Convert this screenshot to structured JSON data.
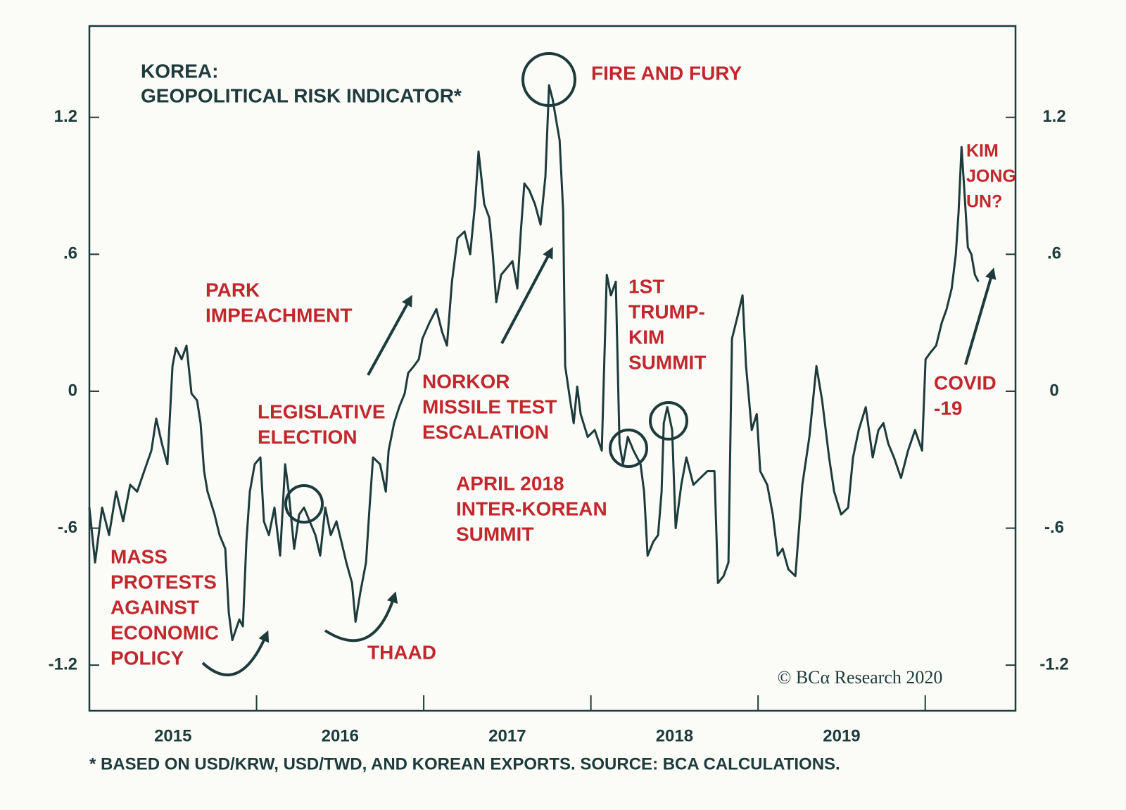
{
  "chart_data": {
    "type": "line",
    "title": [
      "KOREA:",
      "GEOPOLITICAL RISK INDICATOR*"
    ],
    "footnote": "* BASED ON USD/KRW, USD/TWD, AND KOREAN EXPORTS. SOURCE: BCA CALCULATIONS.",
    "credit": "© BCα Research 2020",
    "annotations": [
      [
        "MASS",
        "PROTESTS",
        "AGAINST",
        "ECONOMIC",
        "POLICY"
      ],
      [
        "LEGISLATIVE",
        "ELECTION"
      ],
      [
        "PARK",
        "IMPEACHMENT"
      ],
      [
        "THAAD"
      ],
      [
        "NORKOR",
        "MISSILE TEST",
        "ESCALATION"
      ],
      [
        "APRIL 2018",
        "INTER-KOREAN",
        "SUMMIT"
      ],
      [
        "FIRE AND FURY"
      ],
      [
        "1ST",
        "TRUMP-",
        "KIM",
        "SUMMIT"
      ],
      [
        "KIM",
        "JONG",
        "UN?"
      ],
      [
        "COVID",
        "-19"
      ]
    ],
    "xlim": [
      2015,
      2020.54
    ],
    "xticks": [
      {
        "value": 2015.5,
        "label": "2015"
      },
      {
        "value": 2016.5,
        "label": "2016"
      },
      {
        "value": 2017.5,
        "label": "2017"
      },
      {
        "value": 2018.5,
        "label": "2018"
      },
      {
        "value": 2019.5,
        "label": "2019"
      }
    ],
    "xminor_ticks": [
      2016,
      2017,
      2018,
      2019,
      2020
    ],
    "ylim": [
      -1.4,
      1.6
    ],
    "yticks": [
      1.2,
      {
        "value": 0.6,
        "label": ".6"
      },
      0,
      {
        "value": -0.6,
        "label": "-.6"
      },
      -1.2
    ],
    "x": [
      2015.0,
      2015.034,
      2015.076,
      2015.118,
      2015.16,
      2015.202,
      2015.244,
      2015.286,
      2015.328,
      2015.371,
      2015.4,
      2015.434,
      2015.467,
      2015.497,
      2015.518,
      2015.552,
      2015.581,
      2015.611,
      2015.644,
      2015.665,
      2015.686,
      2015.707,
      2015.749,
      2015.779,
      2015.813,
      2015.834,
      2015.855,
      2015.897,
      2015.918,
      2015.939,
      2015.96,
      2015.989,
      2016.023,
      2016.044,
      2016.074,
      2016.107,
      2016.141,
      2016.171,
      2016.192,
      2016.225,
      2016.255,
      2016.284,
      2016.318,
      2016.352,
      2016.381,
      2016.411,
      2016.444,
      2016.478,
      2016.508,
      2016.537,
      2016.571,
      2016.592,
      2016.621,
      2016.655,
      2016.676,
      2016.697,
      2016.739,
      2016.773,
      2016.79,
      2016.823,
      2016.853,
      2016.886,
      2016.907,
      2016.941,
      2016.971,
      2016.992,
      2017.034,
      2017.076,
      2017.11,
      2017.139,
      2017.169,
      2017.202,
      2017.244,
      2017.278,
      2017.307,
      2017.328,
      2017.362,
      2017.392,
      2017.413,
      2017.434,
      2017.463,
      2017.497,
      2017.531,
      2017.56,
      2017.581,
      2017.602,
      2017.632,
      2017.665,
      2017.699,
      2017.728,
      2017.75,
      2017.771,
      2017.792,
      2017.813,
      2017.834,
      2017.846,
      2017.876,
      2017.897,
      2017.918,
      2017.939,
      2017.981,
      2018.023,
      2018.065,
      2018.095,
      2018.12,
      2018.149,
      2018.171,
      2018.192,
      2018.221,
      2018.255,
      2018.297,
      2018.318,
      2018.339,
      2018.373,
      2018.402,
      2018.423,
      2018.436,
      2018.457,
      2018.486,
      2018.507,
      2018.541,
      2018.571,
      2018.613,
      2018.655,
      2018.697,
      2018.739,
      2018.76,
      2018.794,
      2018.823,
      2018.844,
      2018.878,
      2018.907,
      2018.928,
      2018.962,
      2018.992,
      2019.013,
      2019.055,
      2019.088,
      2019.118,
      2019.147,
      2019.181,
      2019.223,
      2019.265,
      2019.307,
      2019.349,
      2019.383,
      2019.425,
      2019.455,
      2019.497,
      2019.539,
      2019.568,
      2019.602,
      2019.644,
      2019.686,
      2019.72,
      2019.75,
      2019.779,
      2019.813,
      2019.855,
      2019.897,
      2019.939,
      2019.981,
      2020.002,
      2020.032,
      2020.065,
      2020.099,
      2020.128,
      2020.158,
      2020.183,
      2020.2,
      2020.217,
      2020.234,
      2020.255,
      2020.276,
      2020.297,
      2020.318
    ],
    "series": [
      {
        "color": "#1d3b3a",
        "values": [
          -0.51,
          -0.75,
          -0.51,
          -0.63,
          -0.44,
          -0.57,
          -0.41,
          -0.44,
          -0.35,
          -0.26,
          -0.12,
          -0.23,
          -0.32,
          0.11,
          0.19,
          0.14,
          0.2,
          -0.01,
          -0.04,
          -0.14,
          -0.35,
          -0.44,
          -0.54,
          -0.63,
          -0.69,
          -0.97,
          -1.09,
          -1.0,
          -1.03,
          -0.66,
          -0.44,
          -0.32,
          -0.29,
          -0.57,
          -0.63,
          -0.51,
          -0.72,
          -0.32,
          -0.44,
          -0.69,
          -0.54,
          -0.51,
          -0.57,
          -0.63,
          -0.72,
          -0.51,
          -0.63,
          -0.57,
          -0.66,
          -0.75,
          -0.84,
          -1.01,
          -0.88,
          -0.75,
          -0.51,
          -0.29,
          -0.32,
          -0.44,
          -0.26,
          -0.14,
          -0.07,
          -0.01,
          0.08,
          0.11,
          0.14,
          0.23,
          0.3,
          0.36,
          0.26,
          0.2,
          0.48,
          0.67,
          0.7,
          0.6,
          0.82,
          1.05,
          0.82,
          0.76,
          0.6,
          0.39,
          0.51,
          0.54,
          0.57,
          0.45,
          0.7,
          0.91,
          0.88,
          0.82,
          0.73,
          0.94,
          1.34,
          1.28,
          1.19,
          1.1,
          0.79,
          0.11,
          -0.04,
          -0.14,
          0.02,
          -0.1,
          -0.2,
          -0.17,
          -0.26,
          0.51,
          0.42,
          0.48,
          -0.23,
          -0.32,
          -0.2,
          -0.26,
          -0.32,
          -0.44,
          -0.72,
          -0.66,
          -0.63,
          -0.44,
          -0.14,
          -0.07,
          -0.17,
          -0.6,
          -0.41,
          -0.29,
          -0.41,
          -0.38,
          -0.35,
          -0.35,
          -0.84,
          -0.81,
          -0.75,
          0.23,
          0.33,
          0.42,
          0.11,
          -0.17,
          -0.1,
          -0.35,
          -0.41,
          -0.54,
          -0.72,
          -0.69,
          -0.78,
          -0.81,
          -0.41,
          -0.2,
          0.11,
          -0.04,
          -0.29,
          -0.44,
          -0.54,
          -0.51,
          -0.29,
          -0.17,
          -0.07,
          -0.29,
          -0.17,
          -0.14,
          -0.23,
          -0.29,
          -0.38,
          -0.26,
          -0.17,
          -0.26,
          0.14,
          0.17,
          0.2,
          0.3,
          0.36,
          0.45,
          0.6,
          0.79,
          1.07,
          0.88,
          0.63,
          0.6,
          0.51,
          0.48
        ]
      }
    ]
  }
}
